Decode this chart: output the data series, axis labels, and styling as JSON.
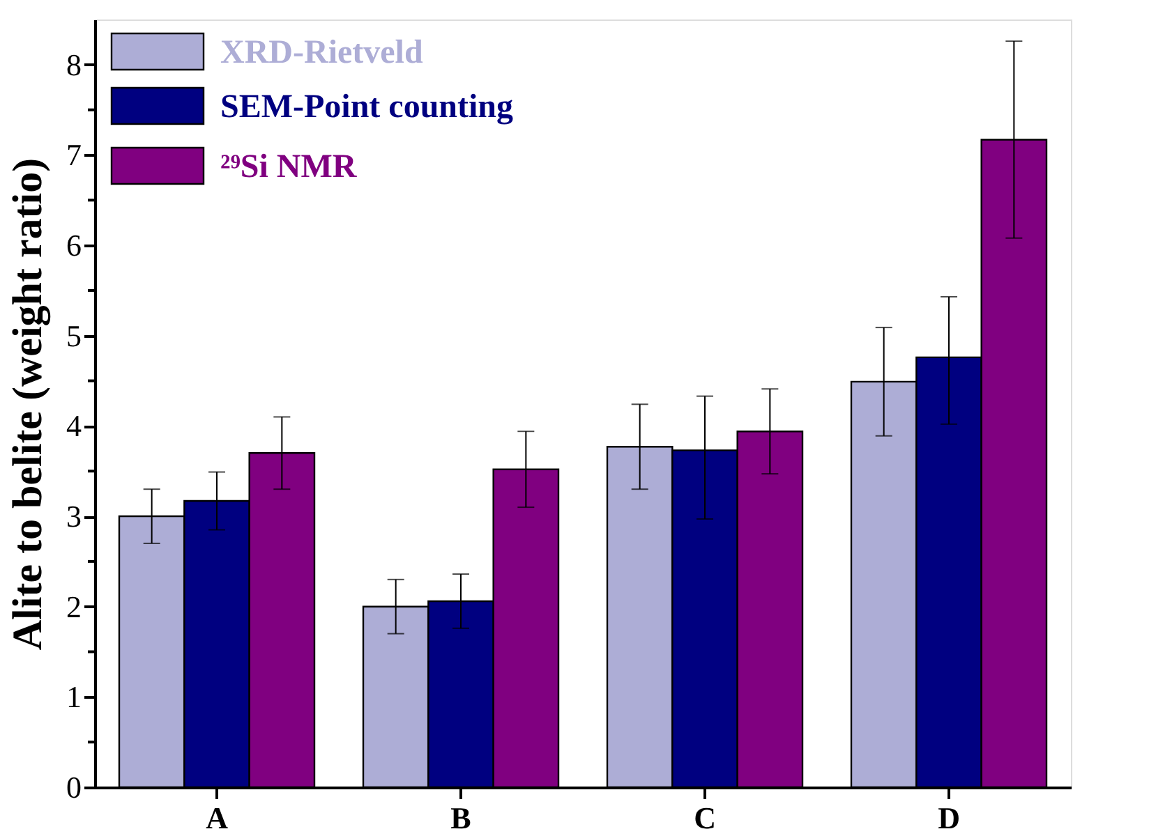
{
  "chart_data": {
    "type": "bar",
    "ylabel": "Alite to belite (weight ratio)",
    "categories": [
      "A",
      "B",
      "C",
      "D"
    ],
    "series": [
      {
        "name": "XRD-Rietveld",
        "color": "#adadd6",
        "values": [
          3.0,
          2.0,
          3.77,
          4.49
        ],
        "errors": [
          0.3,
          0.3,
          0.47,
          0.6
        ]
      },
      {
        "name": "SEM-Point counting",
        "color": "#000080",
        "values": [
          3.17,
          2.06,
          3.73,
          4.76
        ],
        "errors": [
          0.32,
          0.3,
          [
            2.97,
            4.33
          ],
          [
            4.02,
            5.43
          ]
        ]
      },
      {
        "name": "²⁹Si NMR",
        "color": "#800080",
        "values": [
          3.7,
          3.52,
          3.94,
          7.17
        ],
        "errors": [
          0.4,
          0.42,
          0.47,
          1.09
        ]
      }
    ],
    "ylim": [
      0,
      8.5
    ],
    "yticks": [
      0,
      1,
      2,
      3,
      4,
      5,
      6,
      7,
      8
    ],
    "legend": "top left",
    "grid": false
  }
}
